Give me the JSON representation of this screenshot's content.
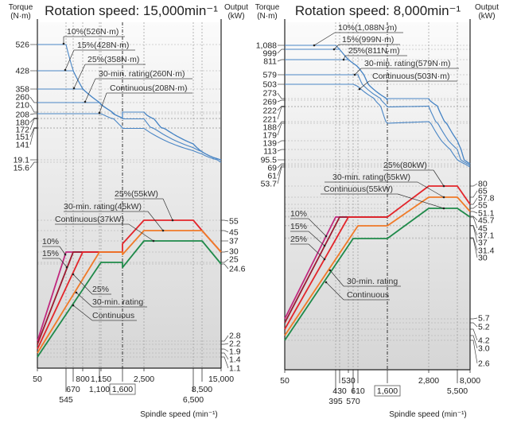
{
  "chart_data": [
    {
      "type": "line",
      "title": "Rotation speed: 15,000min⁻¹",
      "left_axis_label": [
        "Torque",
        "(N·m)"
      ],
      "right_axis_label": [
        "Output",
        "(kW)"
      ],
      "xlabel": "Spindle speed (min⁻¹)",
      "x_scale": "log",
      "x_ticks": [
        50,
        545,
        670,
        800,
        1100,
        1150,
        1600,
        2500,
        6500,
        8500,
        15000
      ],
      "x_tick_labels": [
        "50",
        "545",
        "670",
        "800",
        "1,100",
        "1,150",
        "1,600",
        "2,500",
        "6,500",
        "8,500",
        "15,000"
      ],
      "highlight_speed": 1600,
      "torque_ticks": [
        526,
        428,
        358,
        260,
        210,
        208,
        180,
        172,
        151,
        141,
        19.1,
        15.6
      ],
      "torque_tick_labels": [
        "526",
        "428",
        "358",
        "260",
        "210",
        "208",
        "180",
        "172",
        "151",
        "141",
        "19.1",
        "15.6"
      ],
      "power_ticks": [
        55,
        45,
        37,
        30,
        25,
        24.6,
        2.8,
        2.2,
        1.9,
        1.4,
        1.1
      ],
      "power_tick_labels": [
        "55",
        "45",
        "37",
        "30",
        "25",
        "24.6",
        "2.8",
        "2.2",
        "1.9",
        "1.4",
        "1.1"
      ],
      "torque_series": [
        {
          "name": "10%",
          "color": "#4a86c5",
          "points": [
            [
              50,
              526
            ],
            [
              545,
              526
            ],
            [
              1600,
              180
            ],
            [
              1600,
              210
            ],
            [
              2500,
              210
            ],
            [
              6500,
              80.8
            ],
            [
              8500,
              50.6
            ],
            [
              15000,
              19.1
            ]
          ]
        },
        {
          "name": "15%",
          "color": "#4a86c5",
          "points": [
            [
              50,
              428
            ],
            [
              670,
              428
            ],
            [
              1600,
              180
            ],
            [
              1600,
              210
            ],
            [
              2500,
              210
            ],
            [
              6500,
              80.8
            ],
            [
              8500,
              50.6
            ],
            [
              15000,
              19.1
            ]
          ]
        },
        {
          "name": "25%",
          "color": "#4a86c5",
          "points": [
            [
              50,
              358
            ],
            [
              800,
              358
            ],
            [
              1600,
              180
            ],
            [
              1600,
              210
            ],
            [
              2500,
              210
            ],
            [
              6500,
              80.8
            ],
            [
              8500,
              50.6
            ],
            [
              15000,
              19.1
            ]
          ]
        },
        {
          "name": "30-min. rating",
          "color": "#4a86c5",
          "points": [
            [
              50,
              260
            ],
            [
              1100,
              260
            ],
            [
              1600,
              180
            ],
            [
              1600,
              172
            ],
            [
              2500,
              172
            ],
            [
              8500,
              50.6
            ],
            [
              15000,
              19.1
            ]
          ]
        },
        {
          "name": "Continuous",
          "color": "#4a86c5",
          "points": [
            [
              50,
              208
            ],
            [
              1150,
              208
            ],
            [
              1600,
              151
            ],
            [
              1600,
              141
            ],
            [
              2500,
              141
            ],
            [
              8500,
              41.6
            ],
            [
              15000,
              15.6
            ]
          ]
        }
      ],
      "power_series": [
        {
          "name": "10%",
          "color": "#c0287e",
          "points": [
            [
              50,
              2.8
            ],
            [
              545,
              30
            ],
            [
              1600,
              30
            ]
          ]
        },
        {
          "name": "15%",
          "color": "#9b1b30",
          "points": [
            [
              50,
              2.2
            ],
            [
              670,
              30
            ],
            [
              1600,
              30
            ]
          ]
        },
        {
          "name": "25%",
          "color": "#e3262b",
          "points": [
            [
              50,
              1.9
            ],
            [
              800,
              30
            ],
            [
              1600,
              30
            ],
            [
              1600,
              35.2
            ],
            [
              2500,
              55
            ],
            [
              6500,
              55
            ],
            [
              8500,
              45
            ],
            [
              15000,
              30
            ]
          ]
        },
        {
          "name": "30-min. rating",
          "color": "#f07a28",
          "points": [
            [
              50,
              1.4
            ],
            [
              1100,
              30
            ],
            [
              1600,
              30
            ],
            [
              1600,
              28.8
            ],
            [
              2500,
              45
            ],
            [
              8500,
              45
            ],
            [
              15000,
              30
            ]
          ]
        },
        {
          "name": "Continuous",
          "color": "#1f8a4a",
          "points": [
            [
              50,
              1.1
            ],
            [
              1150,
              25
            ],
            [
              1600,
              25
            ],
            [
              1600,
              23.6
            ],
            [
              2500,
              37
            ],
            [
              8500,
              37
            ],
            [
              15000,
              24.6
            ]
          ]
        }
      ],
      "torque_annotations": [
        "10%(526N·m)",
        "15%(428N·m)",
        "25%(358N·m)",
        "30-min. rating(260N·m)",
        "Continuous(208N·m)"
      ],
      "power_annotations": [
        "25%(55kW)",
        "30-min. rating(45kW)",
        "Continuous(37kW)",
        "10%",
        "15%",
        "25%",
        "30-min. rating",
        "Continuous"
      ]
    },
    {
      "type": "line",
      "title": "Rotation speed: 8,000min⁻¹",
      "left_axis_label": [
        "Torque",
        "(N·m)"
      ],
      "right_axis_label": [
        "Output",
        "(kW)"
      ],
      "xlabel": "Spindle speed (min⁻¹)",
      "x_scale": "log",
      "x_ticks": [
        50,
        395,
        430,
        530,
        570,
        610,
        1600,
        2800,
        5500,
        8000
      ],
      "x_tick_labels": [
        "50",
        "395",
        "430",
        "530",
        "570",
        "610",
        "1,600",
        "2,800",
        "5,500",
        "8,000"
      ],
      "highlight_speed": 1600,
      "torque_ticks": [
        1088,
        999,
        811,
        579,
        503,
        273,
        269,
        222,
        221,
        188,
        179,
        139,
        113,
        95.5,
        69,
        61,
        53.7
      ],
      "torque_tick_labels": [
        "1,088",
        "999",
        "811",
        "579",
        "503",
        "273",
        "269",
        "222",
        "221",
        "188",
        "179",
        "139",
        "113",
        "95.5",
        "69",
        "61",
        "53.7"
      ],
      "power_ticks": [
        80,
        65,
        57.8,
        55,
        51.1,
        45.7,
        45,
        37.1,
        37,
        31.4,
        30,
        5.7,
        5.2,
        4.2,
        3.0,
        2.6
      ],
      "power_tick_labels": [
        "80",
        "65",
        "57.8",
        "55",
        "51.1",
        "45.7",
        "45",
        "37.1",
        "37",
        "31.4",
        "30",
        "5.7",
        "5.2",
        "4.2",
        "3.0",
        "2.6"
      ],
      "torque_series": [
        {
          "name": "10%",
          "color": "#4a86c5",
          "points": [
            [
              50,
              1088
            ],
            [
              395,
              1088
            ],
            [
              1600,
              269
            ],
            [
              1600,
              273
            ],
            [
              2800,
              273
            ],
            [
              5500,
              139
            ],
            [
              8000,
              69
            ]
          ]
        },
        {
          "name": "15%",
          "color": "#4a86c5",
          "points": [
            [
              50,
              999
            ],
            [
              430,
              999
            ],
            [
              1600,
              269
            ],
            [
              1600,
              273
            ],
            [
              2800,
              273
            ],
            [
              5500,
              139
            ],
            [
              8000,
              69
            ]
          ]
        },
        {
          "name": "25%",
          "color": "#4a86c5",
          "points": [
            [
              50,
              811
            ],
            [
              530,
              811
            ],
            [
              1600,
              269
            ],
            [
              1600,
              273
            ],
            [
              2800,
              273
            ],
            [
              5500,
              139
            ],
            [
              8000,
              69
            ]
          ]
        },
        {
          "name": "30-min. rating",
          "color": "#4a86c5",
          "points": [
            [
              50,
              579
            ],
            [
              610,
              579
            ],
            [
              1600,
              221
            ],
            [
              2800,
              222
            ],
            [
              5500,
              113
            ],
            [
              8000,
              61
            ]
          ]
        },
        {
          "name": "Continuous",
          "color": "#4a86c5",
          "points": [
            [
              50,
              503
            ],
            [
              570,
              503
            ],
            [
              1600,
              179
            ],
            [
              2800,
              188
            ],
            [
              5500,
              95.5
            ],
            [
              8000,
              53.7
            ]
          ]
        }
      ],
      "power_series": [
        {
          "name": "10%",
          "color": "#c0287e",
          "points": [
            [
              50,
              5.7
            ],
            [
              395,
              45
            ],
            [
              1600,
              45
            ]
          ]
        },
        {
          "name": "15%",
          "color": "#9b1b30",
          "points": [
            [
              50,
              5.2
            ],
            [
              430,
              45
            ],
            [
              1600,
              45
            ]
          ]
        },
        {
          "name": "25%",
          "color": "#e3262b",
          "points": [
            [
              50,
              4.2
            ],
            [
              530,
              45
            ],
            [
              1600,
              45
            ],
            [
              2800,
              80
            ],
            [
              5500,
              80
            ],
            [
              8000,
              57.8
            ]
          ]
        },
        {
          "name": "30-min. rating",
          "color": "#f07a28",
          "points": [
            [
              50,
              3.0
            ],
            [
              610,
              37
            ],
            [
              1600,
              37
            ],
            [
              2800,
              65
            ],
            [
              5500,
              65
            ],
            [
              8000,
              51.1
            ]
          ]
        },
        {
          "name": "Continuous",
          "color": "#1f8a4a",
          "points": [
            [
              50,
              2.6
            ],
            [
              570,
              30
            ],
            [
              1600,
              30
            ],
            [
              2800,
              55
            ],
            [
              5500,
              55
            ],
            [
              8000,
              45
            ]
          ]
        }
      ],
      "torque_annotations": [
        "10%(1,088N·m)",
        "15%(999N·m)",
        "25%(811N·m)",
        "30-min. rating(579N·m)",
        "Continuous(503N·m)"
      ],
      "power_annotations": [
        "25%(80kW)",
        "30-min. rating(65kW)",
        "Continuous(55kW)",
        "10%",
        "15%",
        "25%",
        "30-min. rating",
        "Continuous"
      ]
    }
  ]
}
